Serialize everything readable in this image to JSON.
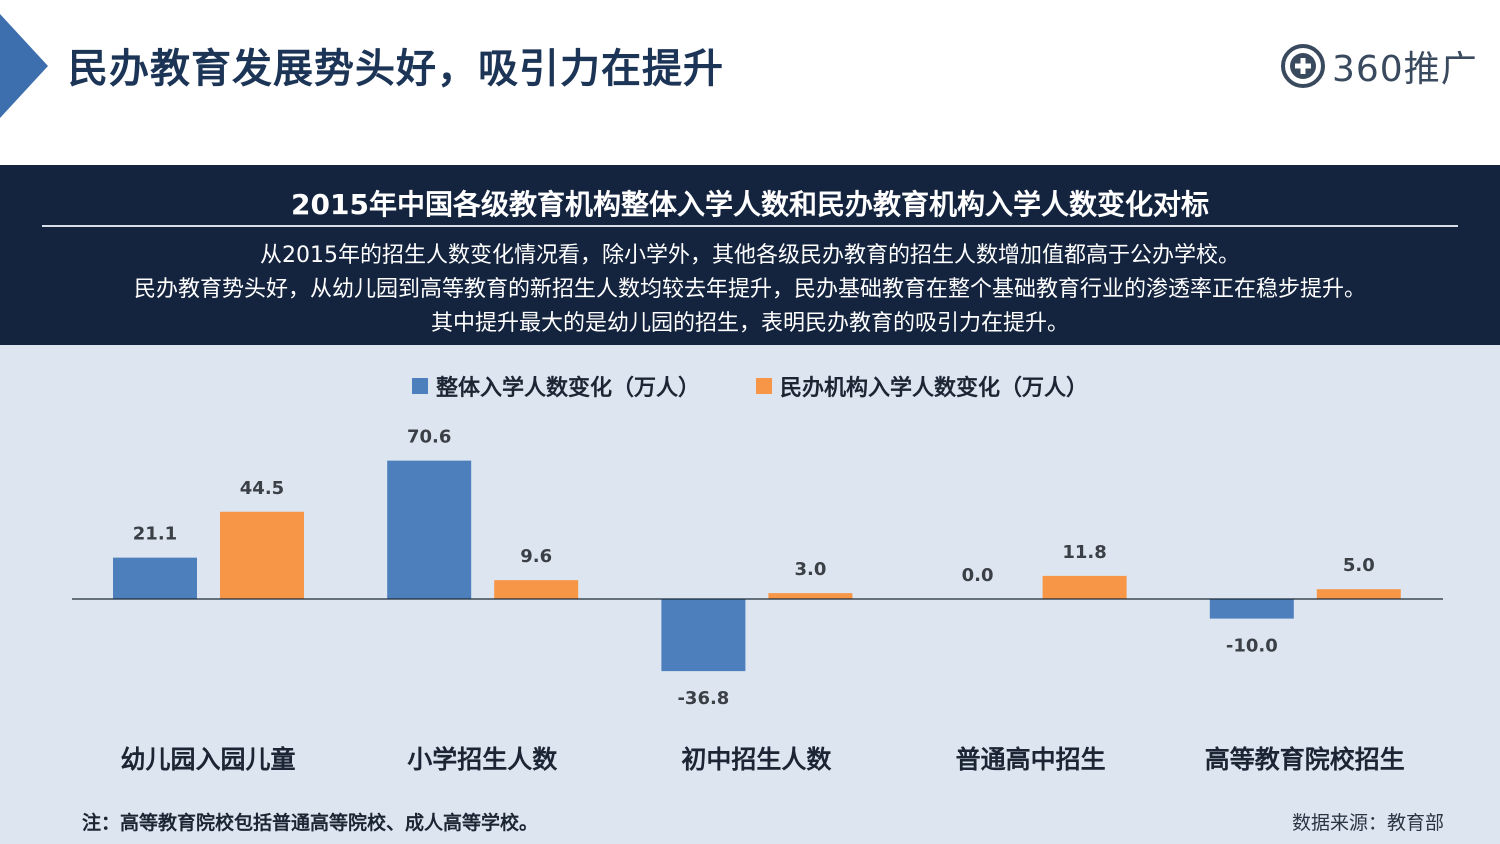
{
  "header": {
    "title": "民办教育发展势头好，吸引力在提升",
    "logo_text": "360推广",
    "accent_color": "#3d6fae"
  },
  "banner": {
    "title": "2015年中国各级教育机构整体入学人数和民办教育机构入学人数变化对标",
    "lines": [
      "从2015年的招生人数变化情况看，除小学外，其他各级民办教育的招生人数增加值都高于公办学校。",
      "民办教育势头好，从幼儿园到高等教育的新招生人数均较去年提升，民办基础教育在整个基础教育行业的渗透率正在稳步提升。",
      "其中提升最大的是幼儿园的招生，表明民办教育的吸引力在提升。"
    ]
  },
  "chart_data": {
    "type": "bar",
    "categories": [
      "幼儿园入园儿童",
      "小学招生人数",
      "初中招生人数",
      "普通高中招生",
      "高等教育院校招生"
    ],
    "series": [
      {
        "name": "整体入学人数变化（万人）",
        "color": "#4e7fbd",
        "values": [
          21.1,
          70.6,
          -36.8,
          0.0,
          -10.0
        ],
        "labels": [
          "21.1",
          "70.6",
          "-36.8",
          "0.0",
          "-10.0"
        ]
      },
      {
        "name": "民办机构入学人数变化（万人）",
        "color": "#f79646",
        "values": [
          44.5,
          9.6,
          3.0,
          11.8,
          5.0
        ],
        "labels": [
          "44.5",
          "9.6",
          "3.0",
          "11.8",
          "5.0"
        ]
      }
    ],
    "legend_position": "top-center",
    "grid": false
  },
  "footer": {
    "note": "注：高等教育院校包括普通高等院校、成人高等学校。",
    "source": "数据来源：教育部"
  }
}
